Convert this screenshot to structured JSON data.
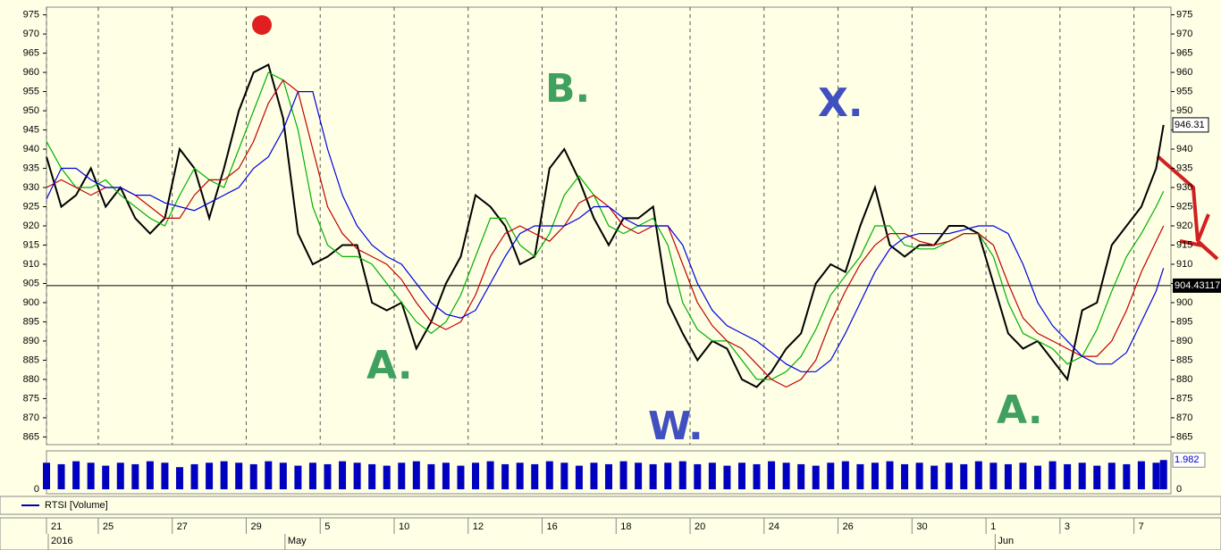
{
  "chart_data": {
    "type": "line",
    "legend": "RTSI [Volume]",
    "xlim": [
      0,
      152
    ],
    "xticks": [
      {
        "value": 0,
        "label": "21"
      },
      {
        "value": 7,
        "label": "25"
      },
      {
        "value": 17,
        "label": "27"
      },
      {
        "value": 27,
        "label": "29"
      },
      {
        "value": 37,
        "label": "5"
      },
      {
        "value": 47,
        "label": "10"
      },
      {
        "value": 57,
        "label": "12"
      },
      {
        "value": 67,
        "label": "16"
      },
      {
        "value": 77,
        "label": "18"
      },
      {
        "value": 87,
        "label": "20"
      },
      {
        "value": 97,
        "label": "24"
      },
      {
        "value": 107,
        "label": "26"
      },
      {
        "value": 117,
        "label": "30"
      },
      {
        "value": 127,
        "label": "1"
      },
      {
        "value": 137,
        "label": "3"
      },
      {
        "value": 147,
        "label": "7"
      }
    ],
    "months": [
      {
        "value": 0,
        "label": "2016"
      },
      {
        "value": 32,
        "label": "May"
      },
      {
        "value": 128,
        "label": "Jun"
      }
    ],
    "ylim": [
      863,
      977
    ],
    "yticks": [
      865,
      870,
      875,
      880,
      885,
      890,
      895,
      900,
      905,
      910,
      915,
      920,
      925,
      930,
      935,
      940,
      945,
      950,
      955,
      960,
      965,
      970,
      975
    ],
    "grid": true,
    "hline": {
      "value": 904.43117,
      "label": "904.43117"
    },
    "x": [
      0,
      2,
      4,
      6,
      8,
      10,
      12,
      14,
      16,
      18,
      20,
      22,
      24,
      26,
      28,
      30,
      32,
      34,
      36,
      38,
      40,
      42,
      44,
      46,
      48,
      50,
      52,
      54,
      56,
      58,
      60,
      62,
      64,
      66,
      68,
      70,
      72,
      74,
      76,
      78,
      80,
      82,
      84,
      86,
      88,
      90,
      92,
      94,
      96,
      98,
      100,
      102,
      104,
      106,
      108,
      110,
      112,
      114,
      116,
      118,
      120,
      122,
      124,
      126,
      128,
      130,
      132,
      134,
      136,
      138,
      140,
      142,
      144,
      146,
      148,
      150,
      151
    ],
    "series": [
      {
        "color": "#000000",
        "values": [
          938,
          925,
          928,
          935,
          925,
          930,
          922,
          918,
          922,
          940,
          935,
          922,
          935,
          950,
          960,
          962,
          948,
          918,
          910,
          912,
          915,
          915,
          900,
          898,
          900,
          888,
          895,
          905,
          912,
          928,
          925,
          920,
          910,
          912,
          935,
          940,
          932,
          922,
          915,
          922,
          922,
          925,
          900,
          892,
          885,
          890,
          888,
          880,
          878,
          882,
          888,
          892,
          905,
          910,
          908,
          920,
          930,
          915,
          912,
          915,
          915,
          920,
          920,
          918,
          905,
          892,
          888,
          890,
          885,
          880,
          898,
          900,
          915,
          920,
          925,
          935,
          946.31
        ],
        "value_labels_last": "946.31"
      },
      {
        "color": "#00b000",
        "values": [
          942,
          935,
          930,
          930,
          932,
          928,
          925,
          922,
          920,
          928,
          935,
          932,
          930,
          940,
          950,
          960,
          958,
          945,
          925,
          915,
          912,
          912,
          910,
          905,
          900,
          895,
          892,
          895,
          902,
          912,
          922,
          922,
          915,
          912,
          918,
          928,
          933,
          928,
          920,
          918,
          920,
          922,
          915,
          900,
          893,
          890,
          890,
          885,
          880,
          880,
          882,
          886,
          893,
          902,
          907,
          912,
          920,
          920,
          915,
          914,
          914,
          916,
          918,
          918,
          912,
          900,
          892,
          890,
          888,
          884,
          886,
          893,
          903,
          912,
          918,
          925,
          929
        ]
      },
      {
        "color": "#c00000",
        "values": [
          930,
          932,
          930,
          928,
          930,
          930,
          928,
          925,
          922,
          922,
          928,
          932,
          932,
          935,
          942,
          952,
          958,
          955,
          940,
          925,
          918,
          914,
          912,
          910,
          906,
          900,
          895,
          893,
          895,
          902,
          912,
          918,
          920,
          918,
          916,
          920,
          926,
          928,
          925,
          920,
          918,
          920,
          920,
          910,
          900,
          894,
          890,
          888,
          884,
          880,
          878,
          880,
          885,
          895,
          903,
          910,
          915,
          918,
          918,
          916,
          915,
          916,
          918,
          918,
          915,
          905,
          896,
          892,
          890,
          888,
          886,
          886,
          890,
          898,
          908,
          916,
          920
        ]
      },
      {
        "color": "#0000e0",
        "values": [
          927,
          935,
          935,
          932,
          930,
          930,
          928,
          928,
          926,
          925,
          924,
          926,
          928,
          930,
          935,
          938,
          945,
          955,
          955,
          940,
          928,
          920,
          915,
          912,
          910,
          905,
          900,
          897,
          896,
          898,
          905,
          912,
          918,
          920,
          920,
          920,
          922,
          925,
          925,
          922,
          920,
          920,
          920,
          915,
          905,
          898,
          894,
          892,
          890,
          887,
          884,
          882,
          882,
          885,
          892,
          900,
          908,
          914,
          917,
          918,
          918,
          918,
          919,
          920,
          920,
          918,
          910,
          900,
          894,
          890,
          886,
          884,
          884,
          887,
          895,
          903,
          909
        ]
      }
    ],
    "volume": {
      "color": "#0000c0",
      "ylim": [
        0,
        2.3
      ],
      "yticks": [
        0
      ],
      "values": [
        1.8,
        1.7,
        1.9,
        1.8,
        1.6,
        1.8,
        1.7,
        1.9,
        1.8,
        1.5,
        1.7,
        1.8,
        1.9,
        1.8,
        1.7,
        1.9,
        1.8,
        1.6,
        1.8,
        1.7,
        1.9,
        1.8,
        1.7,
        1.6,
        1.8,
        1.9,
        1.7,
        1.8,
        1.6,
        1.8,
        1.9,
        1.7,
        1.8,
        1.7,
        1.9,
        1.8,
        1.6,
        1.8,
        1.7,
        1.9,
        1.8,
        1.7,
        1.8,
        1.9,
        1.7,
        1.8,
        1.6,
        1.8,
        1.7,
        1.9,
        1.8,
        1.7,
        1.6,
        1.8,
        1.9,
        1.7,
        1.8,
        1.9,
        1.7,
        1.8,
        1.6,
        1.8,
        1.7,
        1.9,
        1.8,
        1.7,
        1.8,
        1.6,
        1.9,
        1.7,
        1.8,
        1.6,
        1.8,
        1.7,
        1.9,
        1.8,
        1.982
      ],
      "value_labels_last": "1.982"
    },
    "annotations": [
      {
        "text": "A.",
        "color": "#40a060"
      },
      {
        "text": "B.",
        "color": "#40a060"
      },
      {
        "text": "X.",
        "color": "#4050c0"
      },
      {
        "text": "W.",
        "color": "#4050c0"
      },
      {
        "text": "A.",
        "color": "#40a060"
      }
    ]
  }
}
